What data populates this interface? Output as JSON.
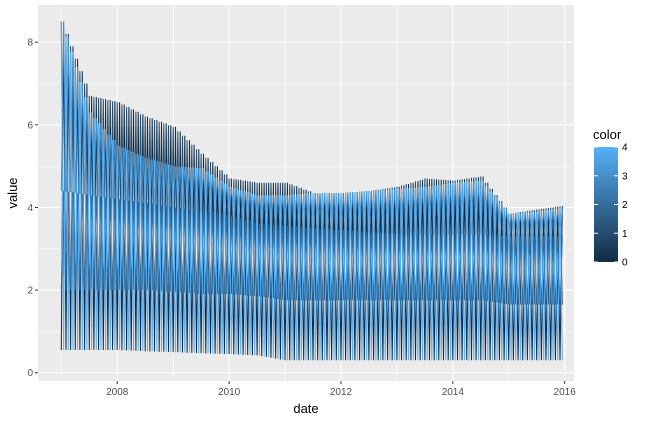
{
  "chart_data": {
    "type": "line",
    "xlabel": "date",
    "ylabel": "value",
    "xlim": [
      "2006-08-01",
      "2016-03-01"
    ],
    "ylim": [
      -0.2,
      8.9
    ],
    "x_ticks": [
      2008,
      2010,
      2012,
      2014,
      2016
    ],
    "y_ticks": [
      0,
      2,
      4,
      6,
      8
    ],
    "grid": true,
    "legend": {
      "title": "color",
      "placement": "right",
      "type": "colorbar",
      "range": [
        0,
        4
      ],
      "ticks": [
        0,
        1,
        2,
        3,
        4
      ],
      "low_color": "#132B43",
      "high_color": "#56B1F7"
    },
    "panel_background": "#EBEBEB",
    "grid_color": "#FFFFFF",
    "series": [
      {
        "color_value": 0,
        "values": [
          {
            "x": "2007-01",
            "y": 0.55
          },
          {
            "x": "2007-07",
            "y": 0.55
          },
          {
            "x": "2008-01",
            "y": 0.55
          },
          {
            "x": "2008-07",
            "y": 0.52
          },
          {
            "x": "2009-01",
            "y": 0.5
          },
          {
            "x": "2009-07",
            "y": 0.47
          },
          {
            "x": "2010-01",
            "y": 0.45
          },
          {
            "x": "2010-07",
            "y": 0.42
          },
          {
            "x": "2011-01",
            "y": 0.3
          }
        ]
      },
      {
        "color_value": 1,
        "values": [
          {
            "x": "2007-01",
            "y": 8.5
          },
          {
            "x": "2007-07",
            "y": 6.7
          },
          {
            "x": "2008-01",
            "y": 6.55
          },
          {
            "x": "2008-07",
            "y": 6.2
          },
          {
            "x": "2009-01",
            "y": 5.95
          },
          {
            "x": "2009-07",
            "y": 5.3
          },
          {
            "x": "2010-01",
            "y": 4.7
          },
          {
            "x": "2010-07",
            "y": 4.6
          },
          {
            "x": "2011-01",
            "y": 4.6
          },
          {
            "x": "2011-07",
            "y": 4.35
          },
          {
            "x": "2012-01",
            "y": 4.35
          },
          {
            "x": "2012-07",
            "y": 4.4
          },
          {
            "x": "2013-01",
            "y": 4.5
          },
          {
            "x": "2013-07",
            "y": 4.7
          },
          {
            "x": "2014-01",
            "y": 4.65
          },
          {
            "x": "2014-07",
            "y": 4.75
          },
          {
            "x": "2015-01",
            "y": 3.85
          },
          {
            "x": "2015-07",
            "y": 3.95
          },
          {
            "x": "2016-01",
            "y": 4.05
          }
        ]
      },
      {
        "color_value": 2,
        "values": [
          {
            "x": "2007-01",
            "y": 2.0
          },
          {
            "x": "2007-07",
            "y": 2.0
          },
          {
            "x": "2008-01",
            "y": 2.0
          },
          {
            "x": "2008-07",
            "y": 2.0
          },
          {
            "x": "2009-01",
            "y": 1.95
          },
          {
            "x": "2009-07",
            "y": 1.9
          },
          {
            "x": "2010-01",
            "y": 1.9
          },
          {
            "x": "2010-07",
            "y": 1.85
          },
          {
            "x": "2011-01",
            "y": 1.75
          },
          {
            "x": "2011-07",
            "y": 1.75
          },
          {
            "x": "2012-01",
            "y": 1.75
          },
          {
            "x": "2012-07",
            "y": 1.75
          },
          {
            "x": "2013-01",
            "y": 1.75
          },
          {
            "x": "2013-07",
            "y": 1.75
          },
          {
            "x": "2014-01",
            "y": 1.75
          },
          {
            "x": "2014-07",
            "y": 1.75
          },
          {
            "x": "2015-01",
            "y": 1.65
          },
          {
            "x": "2015-07",
            "y": 1.65
          },
          {
            "x": "2016-01",
            "y": 1.65
          }
        ]
      },
      {
        "color_value": 3,
        "values": [
          {
            "x": "2007-01",
            "y": 4.4
          },
          {
            "x": "2007-07",
            "y": 4.3
          },
          {
            "x": "2008-01",
            "y": 4.2
          },
          {
            "x": "2008-07",
            "y": 4.1
          },
          {
            "x": "2009-01",
            "y": 4.0
          },
          {
            "x": "2009-07",
            "y": 3.9
          },
          {
            "x": "2010-01",
            "y": 3.8
          },
          {
            "x": "2010-07",
            "y": 3.6
          },
          {
            "x": "2011-01",
            "y": 3.55
          },
          {
            "x": "2011-07",
            "y": 3.5
          },
          {
            "x": "2012-01",
            "y": 3.45
          },
          {
            "x": "2012-07",
            "y": 3.4
          },
          {
            "x": "2013-01",
            "y": 3.35
          },
          {
            "x": "2013-07",
            "y": 3.35
          },
          {
            "x": "2014-01",
            "y": 3.35
          },
          {
            "x": "2014-07",
            "y": 3.35
          },
          {
            "x": "2015-01",
            "y": 3.3
          },
          {
            "x": "2015-07",
            "y": 3.3
          },
          {
            "x": "2016-01",
            "y": 3.3
          }
        ]
      },
      {
        "color_value": 4,
        "values": [
          {
            "x": "2007-01",
            "y": 8.5
          },
          {
            "x": "2007-07",
            "y": 6.3
          },
          {
            "x": "2008-01",
            "y": 5.5
          },
          {
            "x": "2008-07",
            "y": 5.2
          },
          {
            "x": "2009-01",
            "y": 5.0
          },
          {
            "x": "2009-07",
            "y": 4.95
          },
          {
            "x": "2010-01",
            "y": 4.5
          },
          {
            "x": "2010-07",
            "y": 4.3
          },
          {
            "x": "2011-01",
            "y": 4.3
          },
          {
            "x": "2011-07",
            "y": 4.35
          },
          {
            "x": "2012-01",
            "y": 4.35
          },
          {
            "x": "2012-07",
            "y": 4.4
          },
          {
            "x": "2013-01",
            "y": 4.45
          },
          {
            "x": "2013-07",
            "y": 4.5
          },
          {
            "x": "2014-01",
            "y": 4.6
          },
          {
            "x": "2014-07",
            "y": 4.65
          },
          {
            "x": "2015-01",
            "y": 3.85
          },
          {
            "x": "2015-07",
            "y": 3.9
          },
          {
            "x": "2016-01",
            "y": 4.0
          }
        ]
      }
    ]
  }
}
